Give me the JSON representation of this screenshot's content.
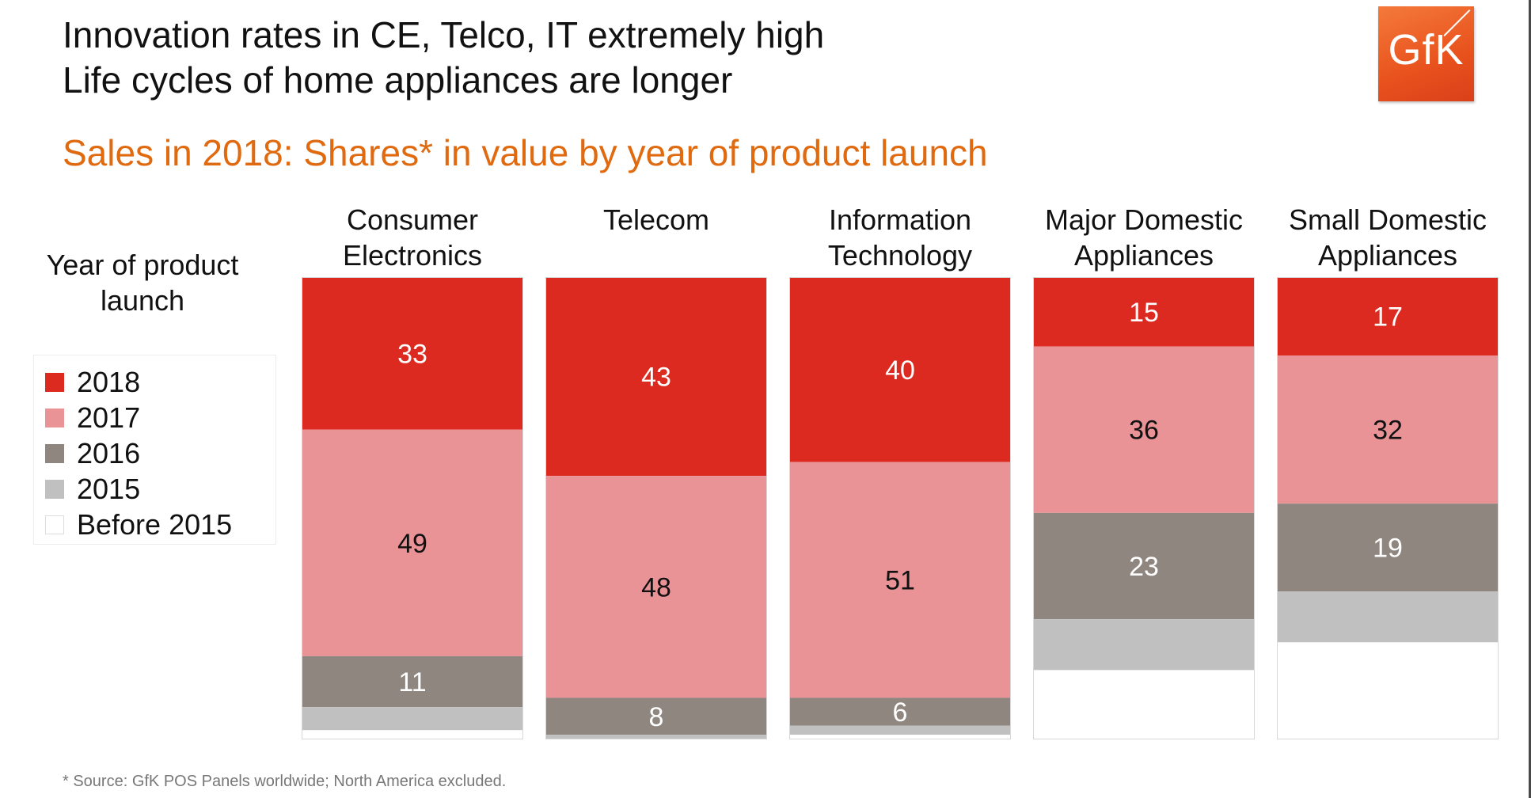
{
  "headline": {
    "line1": "Innovation rates in CE, Telco, IT extremely high",
    "line2": "Life cycles of home appliances are longer"
  },
  "logo": {
    "text": "GfK",
    "color": "#e8521d"
  },
  "footnote": "* Source: GfK POS Panels worldwide; North America excluded.",
  "chart_data": {
    "type": "bar",
    "stacked": true,
    "title": "Sales in 2018: Shares* in value by year of product launch",
    "legend_title": "Year of product launch",
    "legend_position": "left",
    "ylim": [
      0,
      100
    ],
    "categories": [
      [
        "Consumer",
        "Electronics"
      ],
      [
        "Telecom"
      ],
      [
        "Information",
        "Technology"
      ],
      [
        "Major Domestic",
        "Appliances"
      ],
      [
        "Small Domestic",
        "Appliances"
      ]
    ],
    "series": [
      {
        "name": "2018",
        "color": "#dc2a20",
        "label_color": "#ffffff",
        "values": [
          33,
          43,
          40,
          15,
          17
        ],
        "labels": [
          "33",
          "43",
          "40",
          "15",
          "17"
        ]
      },
      {
        "name": "2017",
        "color": "#e99396",
        "label_color": "#111111",
        "values": [
          49,
          48,
          51,
          36,
          32
        ],
        "labels": [
          "49",
          "48",
          "51",
          "36",
          "32"
        ]
      },
      {
        "name": "2016",
        "color": "#8f8680",
        "label_color": "#ffffff",
        "values": [
          11,
          8,
          6,
          23,
          19
        ],
        "labels": [
          "11",
          "8",
          "6",
          "23",
          "19"
        ]
      },
      {
        "name": "2015",
        "color": "#c0c0c0",
        "label_color": "#111111",
        "values": [
          5,
          1,
          2,
          11,
          11
        ],
        "labels": [
          "",
          "",
          "",
          "",
          ""
        ]
      },
      {
        "name": "Before 2015",
        "color": "#ffffff",
        "label_color": "#111111",
        "values": [
          2,
          0,
          1,
          15,
          21
        ],
        "labels": [
          "",
          "",
          "",
          "",
          ""
        ]
      }
    ]
  }
}
